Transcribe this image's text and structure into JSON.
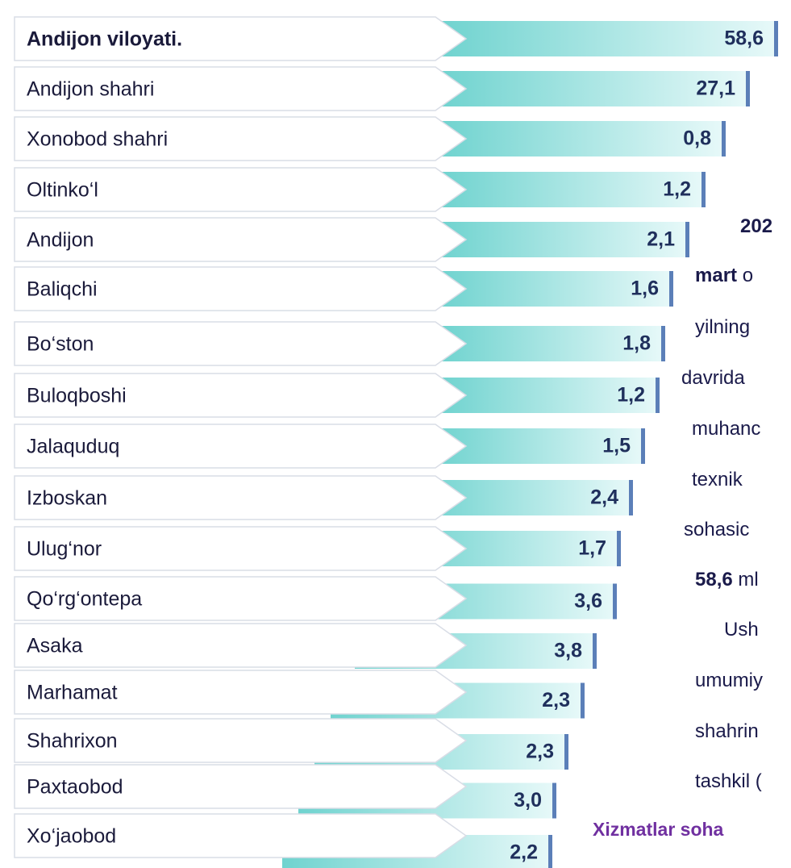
{
  "rows": [
    {
      "name": "Andijon viloyati.",
      "value": "58,6",
      "bold": true
    },
    {
      "name": "Andijon  shahri",
      "value": "27,1"
    },
    {
      "name": "Xonobod shahri",
      "value": "0,8"
    },
    {
      "name": "Oltinko‘l",
      "value": "1,2"
    },
    {
      "name": "Andijon",
      "value": "2,1"
    },
    {
      "name": "Baliqchi",
      "value": "1,6"
    },
    {
      "name": "Bo‘ston",
      "value": "1,8"
    },
    {
      "name": "Buloqboshi",
      "value": "1,2"
    },
    {
      "name": "Jalaquduq",
      "value": "1,5"
    },
    {
      "name": "Izboskan",
      "value": "2,4"
    },
    {
      "name": "Ulug‘nor",
      "value": "1,7"
    },
    {
      "name": "Qo‘rg‘ontepa",
      "value": "3,6"
    },
    {
      "name": "Asaka",
      "value": "3,8"
    },
    {
      "name": "Marhamat",
      "value": "2,3"
    },
    {
      "name": "Shahrixon",
      "value": "2,3"
    },
    {
      "name": "Paxtaobod",
      "value": "3,0"
    },
    {
      "name": "Xo‘jaobod",
      "value": "2,2"
    }
  ],
  "side_text": [
    {
      "parts": [
        {
          "text": "202",
          "bold": true
        }
      ]
    },
    {
      "parts": [
        {
          "text": "mart",
          "bold": true
        },
        {
          "text": " o"
        }
      ]
    },
    {
      "parts": [
        {
          "text": "yilning"
        }
      ]
    },
    {
      "parts": [
        {
          "text": "davrida"
        }
      ]
    },
    {
      "parts": [
        {
          "text": "muhanc"
        }
      ]
    },
    {
      "parts": [
        {
          "text": "texnik"
        }
      ]
    },
    {
      "parts": [
        {
          "text": "sohasic"
        }
      ]
    },
    {
      "parts": [
        {
          "text": "58,6",
          "bold": true
        },
        {
          "text": " ml"
        }
      ]
    },
    {
      "parts": [
        {
          "text": "Ush"
        }
      ]
    },
    {
      "parts": [
        {
          "text": "umumiy"
        }
      ]
    },
    {
      "parts": [
        {
          "text": "shahrin"
        }
      ]
    },
    {
      "parts": [
        {
          "text": "tashkil ("
        }
      ]
    }
  ],
  "footer_heading": "Xizmatlar soha"
}
